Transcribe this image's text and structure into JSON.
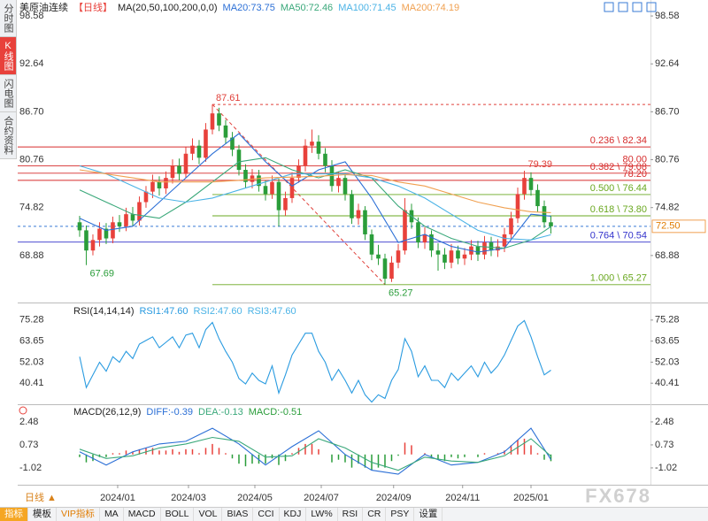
{
  "sidebar_tabs": [
    "分时图",
    "K线图",
    "闪电图",
    "合约资料"
  ],
  "chart_data": [
    {
      "type": "candlestick",
      "title": "美原油连续",
      "period": "【日线】",
      "indicator": "MA(20,50,100,200,0,0)",
      "up_color": "#e8413b",
      "down_color": "#2a9d3a",
      "candles": [
        [
          73.0,
          73.8,
          71.2,
          72.0
        ],
        [
          72.0,
          72.6,
          67.69,
          69.5
        ],
        [
          69.5,
          71.5,
          68.9,
          70.8
        ],
        [
          70.8,
          73.0,
          70.0,
          72.2
        ],
        [
          72.2,
          72.9,
          70.3,
          71.0
        ],
        [
          71.0,
          73.7,
          70.4,
          73.0
        ],
        [
          73.0,
          73.9,
          71.8,
          72.5
        ],
        [
          72.5,
          74.8,
          71.9,
          74.0
        ],
        [
          74.0,
          74.9,
          72.5,
          73.2
        ],
        [
          73.2,
          76.2,
          72.6,
          75.5
        ],
        [
          75.5,
          77.5,
          74.8,
          76.8
        ],
        [
          76.8,
          78.9,
          76.0,
          78.0
        ],
        [
          78.0,
          78.7,
          76.3,
          77.2
        ],
        [
          77.2,
          79.3,
          76.5,
          78.5
        ],
        [
          78.5,
          80.8,
          77.8,
          80.0
        ],
        [
          80.0,
          80.9,
          78.2,
          79.0
        ],
        [
          79.0,
          82.3,
          78.5,
          81.5
        ],
        [
          81.5,
          83.4,
          80.7,
          82.5
        ],
        [
          82.5,
          83.2,
          80.2,
          81.0
        ],
        [
          81.0,
          85.3,
          80.5,
          84.5
        ],
        [
          84.5,
          87.61,
          83.9,
          86.5
        ],
        [
          86.5,
          87.2,
          84.3,
          85.0
        ],
        [
          85.0,
          85.7,
          82.7,
          83.5
        ],
        [
          83.5,
          84.2,
          81.2,
          82.0
        ],
        [
          82.0,
          82.6,
          78.8,
          79.5
        ],
        [
          79.5,
          80.2,
          77.2,
          78.0
        ],
        [
          78.0,
          79.6,
          77.2,
          78.8
        ],
        [
          78.8,
          79.5,
          76.8,
          77.5
        ],
        [
          77.5,
          78.2,
          75.7,
          76.5
        ],
        [
          76.5,
          78.8,
          75.9,
          78.0
        ],
        [
          78.0,
          78.4,
          72.5,
          74.5
        ],
        [
          74.5,
          76.8,
          73.8,
          76.0
        ],
        [
          76.0,
          79.2,
          75.4,
          78.5
        ],
        [
          78.5,
          80.8,
          77.9,
          80.0
        ],
        [
          80.0,
          83.3,
          79.3,
          82.5
        ],
        [
          82.5,
          84.5,
          81.6,
          83.0
        ],
        [
          83.0,
          83.8,
          80.8,
          81.5
        ],
        [
          81.5,
          82.2,
          79.2,
          80.0
        ],
        [
          80.0,
          80.7,
          76.8,
          77.5
        ],
        [
          77.5,
          79.3,
          76.7,
          78.5
        ],
        [
          78.5,
          79.1,
          75.7,
          76.5
        ],
        [
          76.5,
          77.0,
          72.8,
          73.5
        ],
        [
          73.5,
          75.3,
          72.7,
          74.5
        ],
        [
          74.5,
          75.0,
          70.8,
          71.5
        ],
        [
          71.5,
          72.1,
          68.3,
          69.0
        ],
        [
          69.0,
          70.2,
          67.7,
          68.5
        ],
        [
          68.5,
          69.1,
          65.27,
          66.0
        ],
        [
          66.0,
          68.8,
          65.6,
          68.0
        ],
        [
          68.0,
          70.3,
          67.3,
          69.5
        ],
        [
          69.5,
          76.0,
          69.0,
          74.5
        ],
        [
          74.5,
          75.3,
          72.2,
          73.0
        ],
        [
          73.0,
          73.6,
          69.8,
          70.5
        ],
        [
          70.5,
          72.4,
          69.7,
          71.5
        ],
        [
          71.5,
          72.0,
          68.7,
          69.5
        ],
        [
          69.5,
          70.4,
          67.0,
          69.0
        ],
        [
          69.0,
          69.8,
          67.2,
          68.0
        ],
        [
          68.0,
          70.3,
          67.3,
          69.5
        ],
        [
          69.5,
          70.1,
          67.8,
          68.5
        ],
        [
          68.5,
          69.8,
          67.7,
          69.0
        ],
        [
          69.0,
          70.8,
          68.3,
          70.0
        ],
        [
          70.0,
          70.7,
          68.2,
          69.0
        ],
        [
          69.0,
          71.3,
          68.4,
          70.5
        ],
        [
          70.5,
          71.2,
          68.8,
          69.5
        ],
        [
          69.5,
          70.9,
          68.7,
          70.0
        ],
        [
          70.0,
          72.3,
          69.3,
          71.5
        ],
        [
          71.5,
          74.3,
          70.8,
          73.5
        ],
        [
          73.5,
          77.3,
          72.9,
          76.5
        ],
        [
          76.5,
          79.39,
          75.8,
          78.5
        ],
        [
          78.5,
          79.2,
          76.3,
          77.0
        ],
        [
          77.0,
          77.7,
          74.3,
          75.0
        ],
        [
          75.0,
          75.7,
          72.3,
          73.0
        ],
        [
          73.0,
          73.8,
          71.6,
          72.5
        ]
      ],
      "xlim": [
        -9.33,
        86
      ],
      "xticks": [
        {
          "value": 5.73,
          "label": "2024/01"
        },
        {
          "value": 16.4,
          "label": "2024/03"
        },
        {
          "value": 26.4,
          "label": "2024/05"
        },
        {
          "value": 36.4,
          "label": "2024/07"
        },
        {
          "value": 47.3,
          "label": "2024/09"
        },
        {
          "value": 57.7,
          "label": "2024/11"
        },
        {
          "value": 68,
          "label": "2025/01"
        }
      ],
      "ylim": [
        63.27,
        100.56
      ],
      "yticks": [
        98.58,
        92.64,
        {
          "value": 86.7,
          "label": "86.70"
        },
        80.76,
        74.82,
        68.88
      ],
      "ma_x": [
        0,
        4,
        8,
        12,
        16,
        20,
        24,
        28,
        32,
        36,
        40,
        44,
        48,
        52,
        56,
        60,
        64,
        68,
        71
      ],
      "series": [
        {
          "name": "MA20:73.75",
          "color": "#2b6fd6",
          "values": [
            73.5,
            72.0,
            72.5,
            75.5,
            78.5,
            81.5,
            84.0,
            80.5,
            77.5,
            79.5,
            80.5,
            76.0,
            70.5,
            71.5,
            70.0,
            69.3,
            69.8,
            74.0,
            73.75
          ]
        },
        {
          "name": "MA50:72.46",
          "color": "#3aa87a",
          "values": [
            77.0,
            75.5,
            74.0,
            73.5,
            75.5,
            78.0,
            80.5,
            81.0,
            79.5,
            78.5,
            79.5,
            78.5,
            75.0,
            72.5,
            71.0,
            70.0,
            69.8,
            70.8,
            72.46
          ]
        },
        {
          "name": "MA100:71.45",
          "color": "#4bb3e6",
          "values": [
            80.0,
            79.0,
            77.5,
            76.0,
            75.5,
            76.0,
            77.0,
            78.0,
            79.0,
            79.0,
            79.0,
            78.5,
            77.5,
            76.0,
            74.0,
            72.0,
            71.0,
            70.8,
            71.45
          ]
        },
        {
          "name": "MA200:74.19",
          "color": "#f0a050",
          "values": [
            79.5,
            79.0,
            78.5,
            78.0,
            78.0,
            78.0,
            78.2,
            78.5,
            78.6,
            78.7,
            78.9,
            78.8,
            78.0,
            77.5,
            76.5,
            75.5,
            74.8,
            74.3,
            74.19
          ]
        }
      ],
      "levels": [
        {
          "value": 82.34,
          "label": "0.236 \\ 82.34",
          "color": "#d62c2c"
        },
        {
          "value": 80,
          "label": "80.00",
          "color": "#d62c2c"
        },
        {
          "value": 79.08,
          "label": "0.382 \\ 79.08",
          "color": "#d62c2c"
        },
        {
          "value": 78.2,
          "label": "78.20",
          "color": "#d62c2c"
        },
        {
          "value": 76.44,
          "label": "0.500 \\ 76.44",
          "color": "#6aa820"
        },
        {
          "value": 73.8,
          "label": "0.618 \\ 73.80",
          "color": "#6aa820"
        },
        {
          "value": 70.54,
          "label": "0.764 \\ 70.54",
          "color": "#3333cc"
        },
        {
          "value": 65.27,
          "label": "1.000 \\ 65.27",
          "color": "#6aa820"
        }
      ],
      "price_labels": [
        {
          "value": 87.61,
          "color": "#e0403a"
        },
        {
          "value": 67.69,
          "color": "#2a9d3a"
        },
        {
          "value": 65.27,
          "color": "#2a9d3a"
        },
        {
          "value": 79.39,
          "color": "#e0403a"
        }
      ],
      "current_price": {
        "value": 72.5,
        "label": "72.50"
      }
    },
    {
      "type": "line",
      "title": "RSI(14,14,14)",
      "ylim": [
        29.76,
        83.51
      ],
      "yticks": [
        75.28,
        63.65,
        52.03,
        40.41
      ],
      "legend": [
        {
          "name": "RSI1:47.60",
          "color": "#2a9be0"
        },
        {
          "name": "RSI2:47.60",
          "color": "#4bb3e6"
        },
        {
          "name": "RSI3:47.60",
          "color": "#4bb3e6"
        }
      ],
      "series": [
        {
          "name": "RSI1",
          "color": "#2a9be0",
          "values": [
            55,
            38,
            45,
            52,
            47,
            55,
            52,
            58,
            54,
            62,
            64,
            66,
            60,
            63,
            66,
            60,
            67,
            68,
            60,
            70,
            74,
            65,
            58,
            52,
            43,
            40,
            46,
            42,
            40,
            50,
            35,
            45,
            56,
            62,
            68,
            68,
            58,
            52,
            42,
            48,
            42,
            35,
            42,
            34,
            30,
            34,
            32,
            42,
            48,
            65,
            58,
            44,
            50,
            42,
            42,
            38,
            46,
            42,
            46,
            50,
            44,
            52,
            46,
            50,
            56,
            64,
            72,
            75,
            66,
            55,
            45,
            47.6
          ]
        }
      ]
    },
    {
      "type": "macd",
      "title": "MACD(26,12,9)",
      "ylim": [
        -2.1,
        3.62
      ],
      "yticks": [
        2.48,
        0.73,
        -1.02
      ],
      "up_color": "#e8413b",
      "down_color": "#2a9d3a",
      "series": [
        {
          "name": "DIFF:-0.39",
          "color": "#2b6fd6",
          "values": [
            0.2,
            -0.8,
            0.2,
            0.8,
            1.0,
            2.0,
            0.8,
            -0.8,
            0.6,
            1.8,
            0.0,
            -1.2,
            -1.5,
            0.0,
            -0.8,
            -0.6,
            0.2,
            2.0,
            -0.39
          ]
        },
        {
          "name": "DEA:-0.13",
          "color": "#3aa87a",
          "values": [
            0.4,
            -0.3,
            -0.1,
            0.5,
            0.8,
            1.3,
            1.0,
            -0.2,
            -0.1,
            1.2,
            0.5,
            -0.6,
            -1.2,
            -0.2,
            -0.5,
            -0.6,
            -0.1,
            1.2,
            -0.13
          ]
        }
      ],
      "histogram": {
        "name": "MACD:-0.51",
        "color": "#2a9d3a",
        "values": [
          -0.2,
          -0.6,
          -0.5,
          -0.2,
          -0.2,
          0.1,
          0.1,
          0.3,
          0.2,
          0.4,
          0.5,
          0.5,
          0.3,
          0.3,
          0.4,
          0.2,
          0.4,
          0.4,
          0.1,
          0.5,
          0.8,
          0.5,
          0.1,
          -0.3,
          -0.7,
          -0.9,
          -0.7,
          -0.7,
          -0.7,
          -0.3,
          -0.8,
          -0.5,
          0.1,
          0.5,
          0.8,
          0.8,
          0.4,
          0.0,
          -0.6,
          -0.4,
          -0.6,
          -1.0,
          -0.7,
          -1.0,
          -1.2,
          -1.0,
          -1.0,
          -0.5,
          -0.1,
          0.9,
          0.7,
          0.0,
          0.1,
          -0.3,
          -0.4,
          -0.5,
          -0.2,
          -0.3,
          -0.2,
          0.0,
          -0.2,
          0.1,
          0.0,
          0.1,
          0.3,
          0.7,
          1.1,
          1.2,
          0.7,
          0.1,
          -0.4,
          -0.51
        ]
      }
    }
  ],
  "period_selector": "日线 ▲",
  "toolbar": [
    "指标",
    "模板",
    "VIP指标",
    "MA",
    "MACD",
    "BOLL",
    "VOL",
    "BIAS",
    "CCI",
    "KDJ",
    "LW%",
    "RSI",
    "CR",
    "PSY",
    "设置"
  ],
  "watermark": "FX678"
}
